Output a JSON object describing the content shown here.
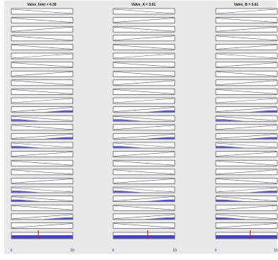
{
  "colors": {
    "background": "#e9e9e9",
    "panel_border": "#333333",
    "panel_fill": "#ffffff",
    "mf_line": "#555566",
    "mf_fill": "#3f3fd6",
    "output_marker": "#d11a1a",
    "tick_text": "#2233cc"
  },
  "columns": [
    {
      "title": "Valve_Inlet = 4.39",
      "output_value": 4.39,
      "axis": {
        "min": 0,
        "max": 10,
        "tick_labels": [
          "0",
          "10"
        ]
      },
      "rows": [
        {
          "dir": "down",
          "fill": 0
        },
        {
          "dir": "down",
          "fill": 0
        },
        {
          "dir": "up",
          "fill": 0
        },
        {
          "dir": "down",
          "fill": 0
        },
        {
          "dir": "down",
          "fill": 0
        },
        {
          "dir": "up",
          "fill": 0
        },
        {
          "dir": "down",
          "fill": 0
        },
        {
          "dir": "up",
          "fill": 0
        },
        {
          "dir": "down",
          "fill": 0
        },
        {
          "dir": "down",
          "fill": 0
        },
        {
          "dir": "up",
          "fill": 0
        },
        {
          "dir": "up",
          "fill": 0.3
        },
        {
          "dir": "down",
          "fill": 0.3
        },
        {
          "dir": "down",
          "fill": 0
        },
        {
          "dir": "up",
          "fill": 0.3
        },
        {
          "dir": "down",
          "fill": 0.3
        },
        {
          "dir": "up",
          "fill": 0
        },
        {
          "dir": "down",
          "fill": 0
        },
        {
          "dir": "down",
          "fill": 0
        },
        {
          "dir": "up",
          "fill": 0
        },
        {
          "dir": "down",
          "fill": 0.3
        },
        {
          "dir": "down",
          "fill": 0.3
        },
        {
          "dir": "down",
          "fill": 0
        },
        {
          "dir": "up",
          "fill": 0.3
        },
        {
          "dir": "up",
          "fill": 0
        }
      ]
    },
    {
      "title": "Valve_A = 5.61",
      "output_value": 5.61,
      "axis": {
        "min": 0,
        "max": 10,
        "tick_labels": [
          "0",
          "10"
        ]
      },
      "rows": [
        {
          "dir": "down",
          "fill": 0
        },
        {
          "dir": "up",
          "fill": 0
        },
        {
          "dir": "down",
          "fill": 0
        },
        {
          "dir": "up",
          "fill": 0
        },
        {
          "dir": "down",
          "fill": 0
        },
        {
          "dir": "up",
          "fill": 0
        },
        {
          "dir": "down",
          "fill": 0
        },
        {
          "dir": "down",
          "fill": 0
        },
        {
          "dir": "up",
          "fill": 0
        },
        {
          "dir": "down",
          "fill": 0
        },
        {
          "dir": "up",
          "fill": 0
        },
        {
          "dir": "up",
          "fill": 0.3
        },
        {
          "dir": "down",
          "fill": 0.3
        },
        {
          "dir": "up",
          "fill": 0
        },
        {
          "dir": "up",
          "fill": 0.3
        },
        {
          "dir": "down",
          "fill": 0.3
        },
        {
          "dir": "up",
          "fill": 0
        },
        {
          "dir": "down",
          "fill": 0
        },
        {
          "dir": "down",
          "fill": 0
        },
        {
          "dir": "up",
          "fill": 0
        },
        {
          "dir": "down",
          "fill": 0.3
        },
        {
          "dir": "up",
          "fill": 0.3
        },
        {
          "dir": "down",
          "fill": 0
        },
        {
          "dir": "up",
          "fill": 0.3
        },
        {
          "dir": "down",
          "fill": 0
        }
      ]
    },
    {
      "title": "Valve_B = 5.61",
      "output_value": 5.61,
      "axis": {
        "min": 0,
        "max": 10,
        "tick_labels": [
          "0",
          "10"
        ]
      },
      "rows": [
        {
          "dir": "up",
          "fill": 0
        },
        {
          "dir": "down",
          "fill": 0
        },
        {
          "dir": "up",
          "fill": 0
        },
        {
          "dir": "down",
          "fill": 0
        },
        {
          "dir": "up",
          "fill": 0
        },
        {
          "dir": "down",
          "fill": 0
        },
        {
          "dir": "up",
          "fill": 0
        },
        {
          "dir": "down",
          "fill": 0
        },
        {
          "dir": "up",
          "fill": 0
        },
        {
          "dir": "down",
          "fill": 0
        },
        {
          "dir": "up",
          "fill": 0
        },
        {
          "dir": "up",
          "fill": 0.3
        },
        {
          "dir": "down",
          "fill": 0.3
        },
        {
          "dir": "up",
          "fill": 0
        },
        {
          "dir": "up",
          "fill": 0.3
        },
        {
          "dir": "down",
          "fill": 0.3
        },
        {
          "dir": "up",
          "fill": 0
        },
        {
          "dir": "down",
          "fill": 0
        },
        {
          "dir": "up",
          "fill": 0
        },
        {
          "dir": "down",
          "fill": 0
        },
        {
          "dir": "up",
          "fill": 0.3
        },
        {
          "dir": "down",
          "fill": 0.3
        },
        {
          "dir": "up",
          "fill": 0
        },
        {
          "dir": "down",
          "fill": 0.3
        },
        {
          "dir": "up",
          "fill": 0
        }
      ]
    }
  ]
}
